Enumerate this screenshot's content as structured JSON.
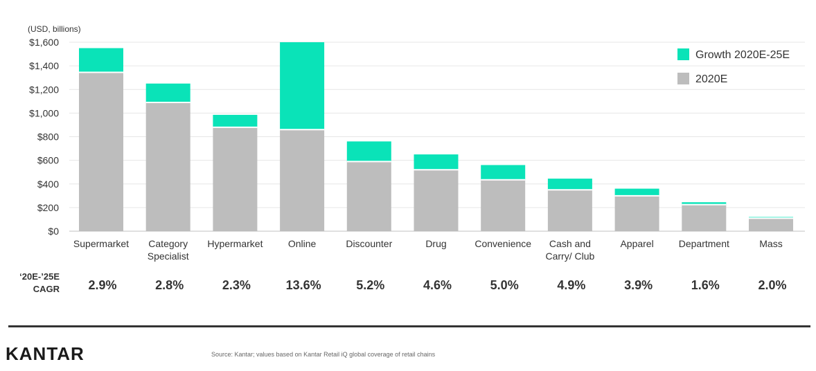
{
  "chart_data": {
    "type": "bar",
    "stacked": true,
    "units_label": "(USD, billions)",
    "y_ticks": [
      "$0",
      "$200",
      "$400",
      "$600",
      "$800",
      "$1,000",
      "$1,200",
      "$1,400",
      "$1,600"
    ],
    "ylim": [
      0,
      1600
    ],
    "grid": true,
    "legend_position": "top-right",
    "categories": [
      [
        "Supermarket"
      ],
      [
        "Category",
        "Specialist"
      ],
      [
        "Hypermarket"
      ],
      [
        "Online"
      ],
      [
        "Discounter"
      ],
      [
        "Drug"
      ],
      [
        "Convenience"
      ],
      [
        "Cash and",
        "Carry/ Club"
      ],
      [
        "Apparel"
      ],
      [
        "Department"
      ],
      [
        "Mass"
      ]
    ],
    "series": [
      {
        "name": "2020E",
        "color": "#bdbdbd",
        "values": [
          1345,
          1090,
          880,
          860,
          590,
          520,
          435,
          350,
          300,
          225,
          110
        ]
      },
      {
        "name": "Growth 2020E-25E",
        "color": "#0ae3b8",
        "values": [
          205,
          160,
          105,
          740,
          170,
          130,
          125,
          95,
          60,
          20,
          10
        ]
      }
    ],
    "legend": [
      "Growth 2020E-25E",
      "2020E"
    ],
    "cagr_label": [
      "‘20E-’25E",
      "CAGR"
    ],
    "cagr_values": [
      "2.9%",
      "2.8%",
      "2.3%",
      "13.6%",
      "5.2%",
      "4.6%",
      "5.0%",
      "4.9%",
      "3.9%",
      "1.6%",
      "2.0%"
    ]
  },
  "footer": {
    "brand": "KANTAR",
    "source": "Source: Kantar; values based on Kantar Retail iQ global coverage of retail chains"
  }
}
